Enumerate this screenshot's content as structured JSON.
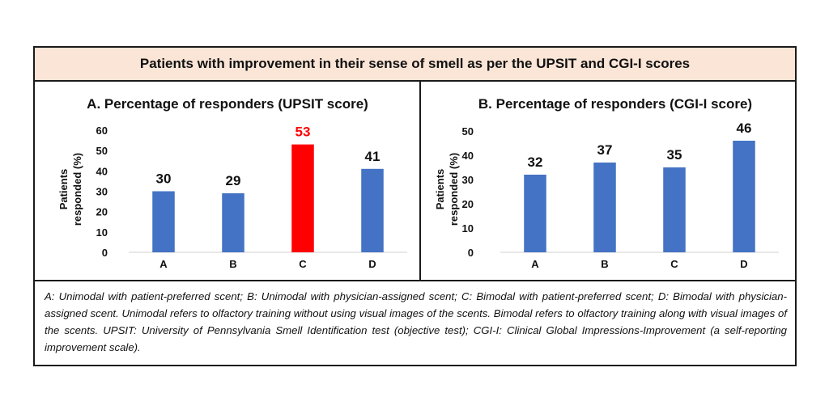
{
  "header": {
    "title": "Patients with improvement in their sense of smell as per the UPSIT and CGI-I scores"
  },
  "chart_data": [
    {
      "type": "bar",
      "title": "A. Percentage of responders (UPSIT score)",
      "ylabel": "Patients responded (%)",
      "ylabel_lines": [
        "Patients",
        "responded (%)"
      ],
      "xlabel": "",
      "categories": [
        "A",
        "B",
        "C",
        "D"
      ],
      "values": [
        30,
        29,
        53,
        41
      ],
      "data_labels": [
        "30",
        "29",
        "53",
        "41"
      ],
      "colors": [
        "#4472c4",
        "#4472c4",
        "#ff0000",
        "#4472c4"
      ],
      "label_colors": [
        "#111111",
        "#111111",
        "#ff0000",
        "#111111"
      ],
      "yticks": [
        "0",
        "10",
        "20",
        "30",
        "40",
        "50",
        "60"
      ],
      "ylim": [
        0,
        60
      ],
      "grid": false,
      "legend": "none"
    },
    {
      "type": "bar",
      "title": "B. Percentage of responders (CGI-I score)",
      "ylabel": "Patients responded (%)",
      "ylabel_lines": [
        "Patients",
        "responded (%)"
      ],
      "xlabel": "",
      "categories": [
        "A",
        "B",
        "C",
        "D"
      ],
      "values": [
        32,
        37,
        35,
        46
      ],
      "data_labels": [
        "32",
        "37",
        "35",
        "46"
      ],
      "colors": [
        "#4472c4",
        "#4472c4",
        "#4472c4",
        "#4472c4"
      ],
      "label_colors": [
        "#111111",
        "#111111",
        "#111111",
        "#111111"
      ],
      "yticks": [
        "0",
        "10",
        "20",
        "30",
        "40",
        "50"
      ],
      "ylim": [
        0,
        50
      ],
      "grid": false,
      "legend": "none"
    }
  ],
  "footnote": {
    "text": "A: Unimodal with patient-preferred scent; B: Unimodal with physician-assigned scent; C: Bimodal with patient-preferred scent; D: Bimodal with physician-assigned scent. Unimodal refers to olfactory training without using visual images of the scents. Bimodal refers to olfactory training along with visual images of the scents. UPSIT: University of Pennsylvania Smell Identification test (objective test); CGI-I: Clinical Global Impressions-Improvement (a self-reporting improvement scale)."
  },
  "colors": {
    "header_bg": "#fbe5d6",
    "bar_default": "#4472c4",
    "bar_highlight": "#ff0000",
    "border": "#1a1a1a"
  }
}
